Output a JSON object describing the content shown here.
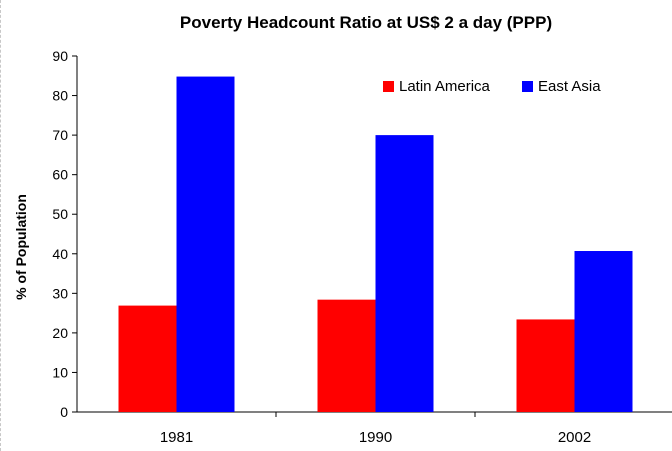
{
  "chart_data": {
    "type": "bar",
    "title": "Poverty Headcount Ratio at US$ 2 a day (PPP)",
    "xlabel": "",
    "ylabel": "% of Population",
    "categories": [
      "1981",
      "1990",
      "2002"
    ],
    "ylim": [
      0,
      90
    ],
    "yticks": [
      "0",
      "10",
      "20",
      "30",
      "40",
      "50",
      "60",
      "70",
      "80",
      "90"
    ],
    "grid": false,
    "legend_position": "top-right",
    "series": [
      {
        "name": "Latin America",
        "color": "#ff0000",
        "values": [
          26.9,
          28.4,
          23.4
        ]
      },
      {
        "name": "East Asia",
        "color": "#0000ff",
        "values": [
          84.8,
          70.0,
          40.7
        ]
      }
    ]
  }
}
